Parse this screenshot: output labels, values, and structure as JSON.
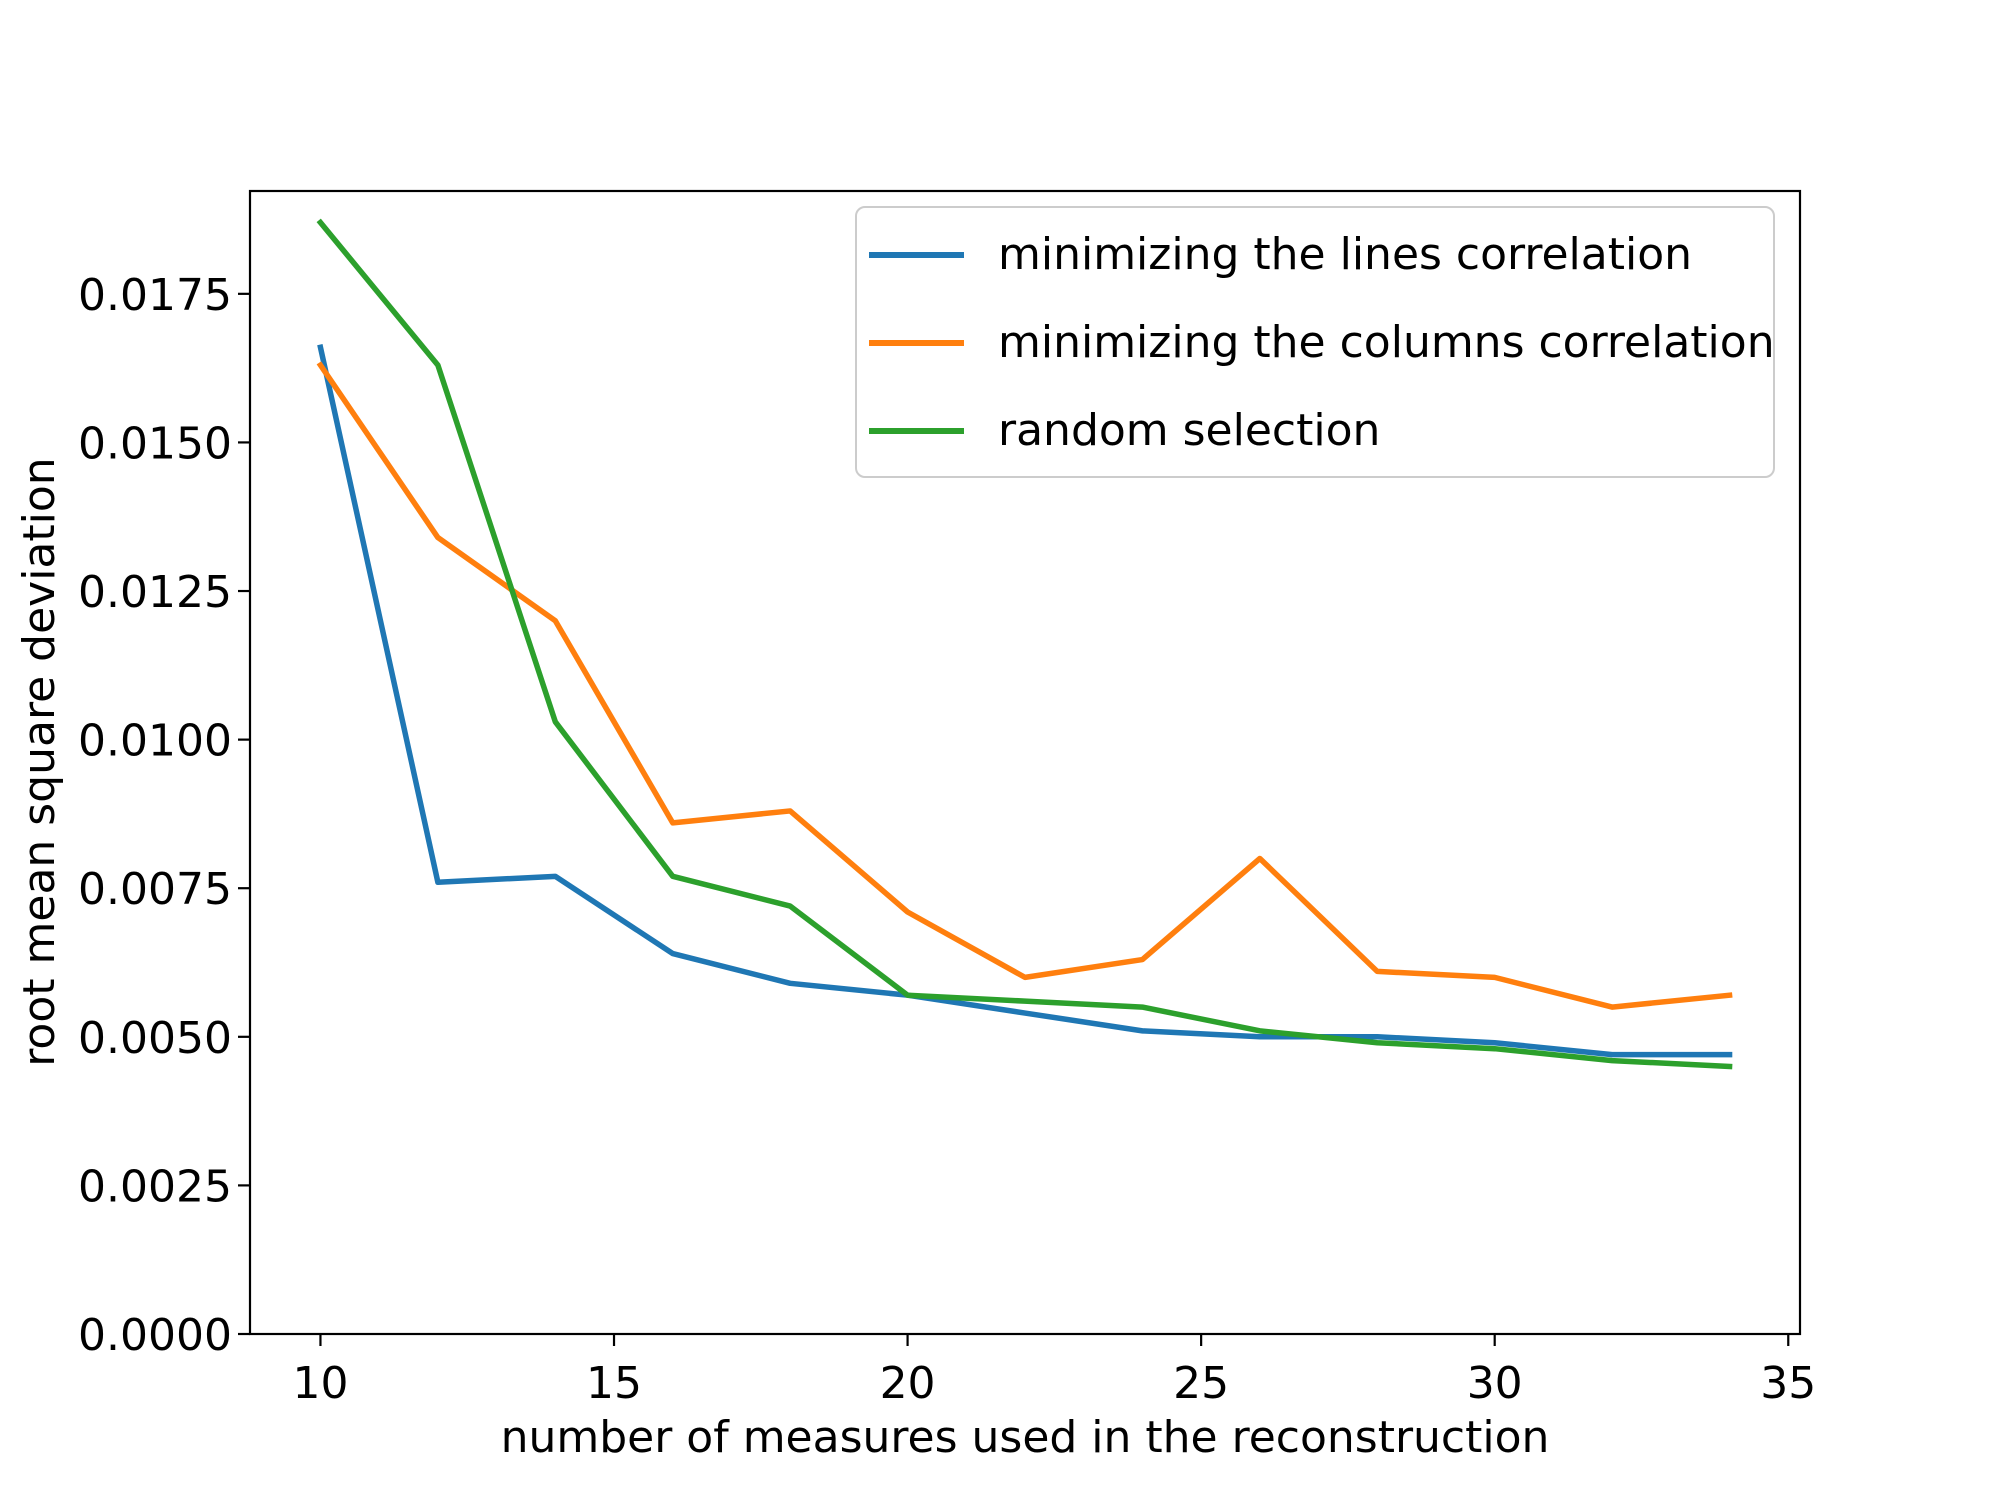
{
  "figure": {
    "background": "#ffffff",
    "spine_color": "#000000",
    "text_color": "#000000"
  },
  "chart_data": {
    "type": "line",
    "title": "",
    "xlabel": "number of measures used in the reconstruction",
    "ylabel": "root mean square deviation",
    "x": [
      10,
      12,
      14,
      16,
      18,
      20,
      22,
      24,
      26,
      28,
      30,
      32,
      34
    ],
    "series": [
      {
        "name": "minimizing the lines correlation",
        "color": "#1f77b4",
        "values": [
          0.0166,
          0.0076,
          0.0077,
          0.0064,
          0.0059,
          0.0057,
          0.0054,
          0.0051,
          0.005,
          0.005,
          0.0049,
          0.0047,
          0.0047
        ]
      },
      {
        "name": "minimizing the columns correlation",
        "color": "#ff7f0e",
        "values": [
          0.0163,
          0.0134,
          0.012,
          0.0086,
          0.0088,
          0.0071,
          0.006,
          0.0063,
          0.008,
          0.0061,
          0.006,
          0.0055,
          0.0057
        ]
      },
      {
        "name": "random selection",
        "color": "#2ca02c",
        "values": [
          0.0187,
          0.0163,
          0.0103,
          0.0077,
          0.0072,
          0.0057,
          0.0056,
          0.0055,
          0.0051,
          0.0049,
          0.0048,
          0.0046,
          0.0045
        ]
      }
    ],
    "xlim": [
      8.8,
      35.2
    ],
    "ylim": [
      0,
      0.01923
    ],
    "x_ticks": [
      10,
      15,
      20,
      25,
      30,
      35
    ],
    "y_ticks": [
      0.0,
      0.0025,
      0.005,
      0.0075,
      0.01,
      0.0125,
      0.015,
      0.0175
    ],
    "y_tick_decimals": 4,
    "grid": false,
    "legend_position": "upper right"
  }
}
